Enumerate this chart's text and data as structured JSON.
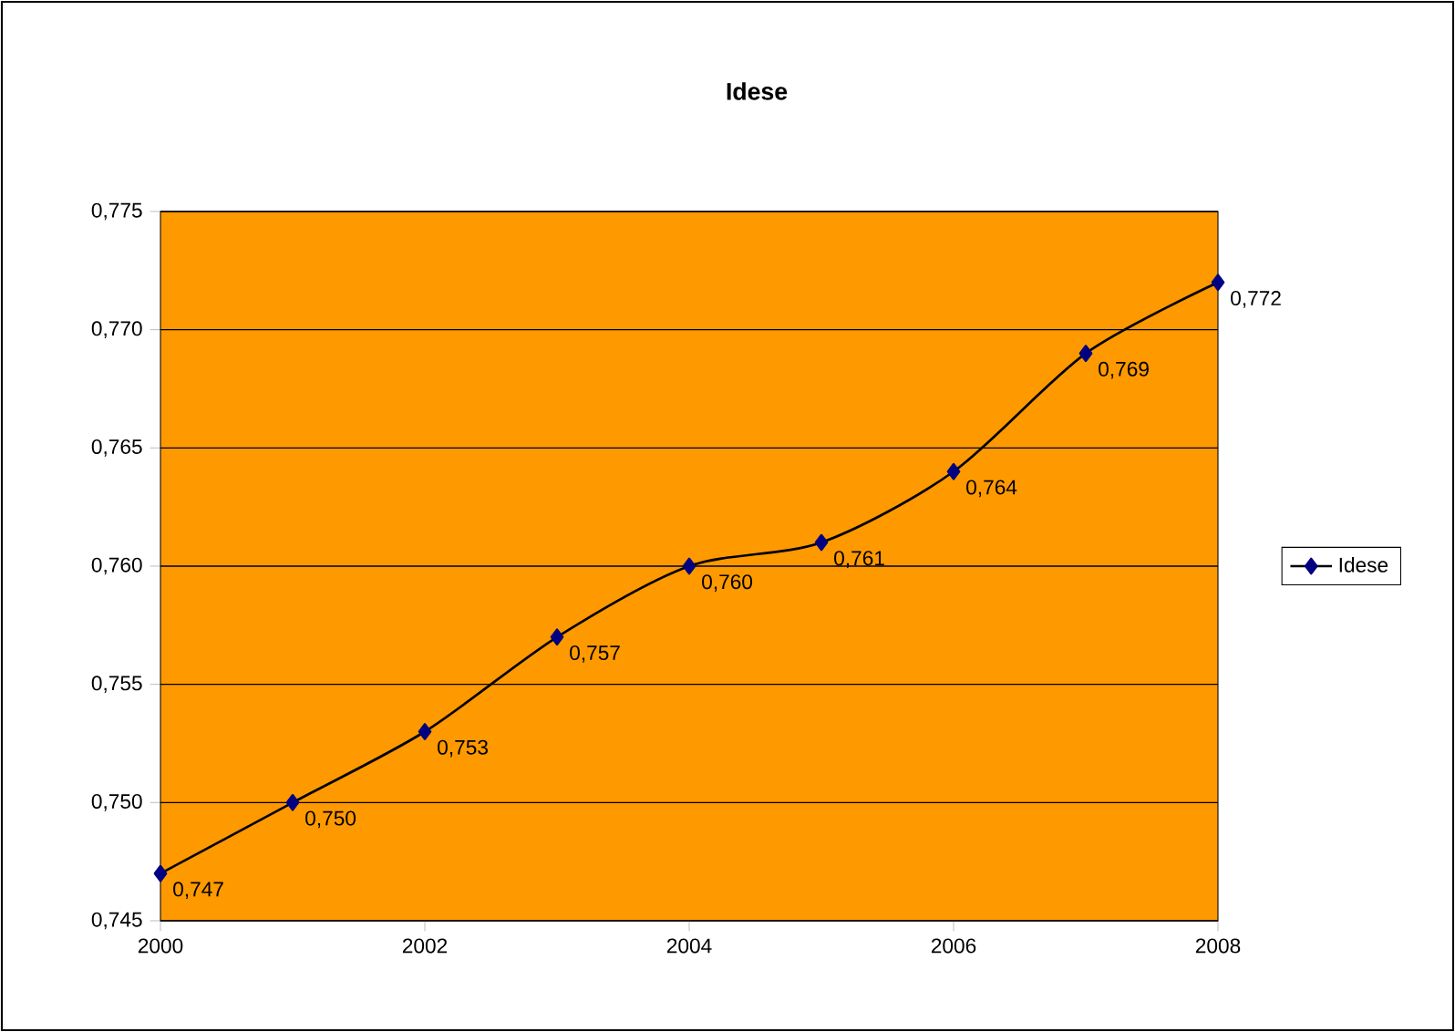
{
  "chart_data": {
    "type": "line",
    "title": "Idese",
    "x": [
      2000,
      2001,
      2002,
      2003,
      2004,
      2005,
      2006,
      2007,
      2008
    ],
    "series": [
      {
        "name": "Idese",
        "color": "#000080",
        "values": [
          0.747,
          0.75,
          0.753,
          0.757,
          0.76,
          0.761,
          0.764,
          0.769,
          0.772
        ],
        "value_labels": [
          "0,747",
          "0,750",
          "0,753",
          "0,757",
          "0,760",
          "0,761",
          "0,764",
          "0,769",
          "0,772"
        ]
      }
    ],
    "xlim": [
      2000,
      2008
    ],
    "xticks": [
      2000,
      2002,
      2004,
      2006,
      2008
    ],
    "ylim": [
      0.745,
      0.775
    ],
    "yticks": [
      {
        "value": 0.745,
        "label": "0,745"
      },
      {
        "value": 0.75,
        "label": "0,750"
      },
      {
        "value": 0.755,
        "label": "0,755"
      },
      {
        "value": 0.76,
        "label": "0,760"
      },
      {
        "value": 0.765,
        "label": "0,765"
      },
      {
        "value": 0.77,
        "label": "0,770"
      },
      {
        "value": 0.775,
        "label": "0,775"
      }
    ],
    "grid": "y",
    "legend": "right",
    "marker": "diamond",
    "line_style": "solid"
  }
}
